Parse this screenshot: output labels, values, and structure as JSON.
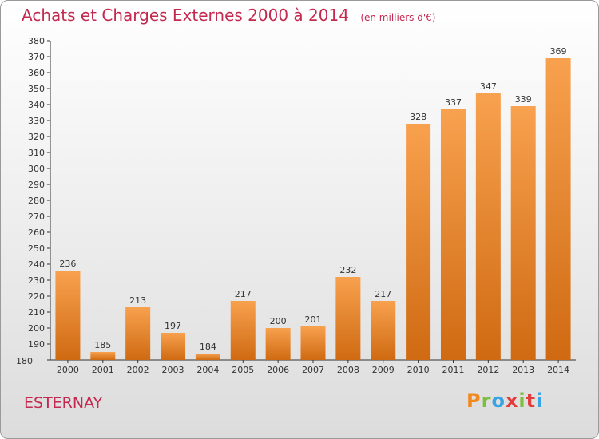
{
  "header": {
    "title": "Achats et Charges Externes 2000 à 2014",
    "subtitle": "(en milliers d'€)"
  },
  "footer": {
    "city": "ESTERNAY",
    "logo": "Proxiti"
  },
  "colors": {
    "bar_top": "#f8a14e",
    "bar_bottom": "#cf6a12",
    "accent": "#c4294f",
    "logo_letters": [
      "#f08a1e",
      "#7fbf3f",
      "#3aa3e3",
      "#e23c3c",
      "#7fbf3f",
      "#e23c3c",
      "#3aa3e3"
    ]
  },
  "chart_data": {
    "type": "bar",
    "title": "Achats et Charges Externes 2000 à 2014",
    "subtitle": "(en milliers d'€)",
    "categories": [
      "2000",
      "2001",
      "2002",
      "2003",
      "2004",
      "2005",
      "2006",
      "2007",
      "2008",
      "2009",
      "2010",
      "2011",
      "2012",
      "2013",
      "2014"
    ],
    "values": [
      236,
      185,
      213,
      197,
      184,
      217,
      200,
      201,
      232,
      217,
      328,
      337,
      347,
      339,
      369
    ],
    "ylim": [
      180,
      380
    ],
    "ytick_step": 10,
    "grid": false,
    "legend": "none"
  }
}
